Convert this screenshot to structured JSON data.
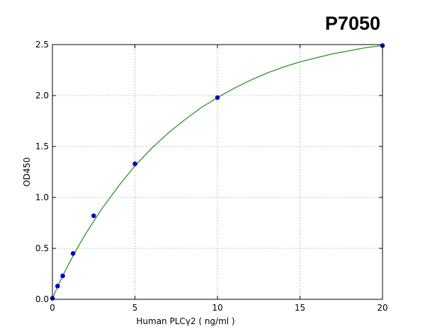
{
  "chart_data": {
    "type": "scatter",
    "title": "P7050",
    "xlabel": "Human PLCγ2 ( ng/ml )",
    "ylabel": "OD450",
    "xlim": [
      0,
      20
    ],
    "ylim": [
      0,
      2.5
    ],
    "xticks": [
      "0",
      "5",
      "10",
      "15",
      "20"
    ],
    "yticks": [
      "0.0",
      "0.5",
      "1.0",
      "1.5",
      "2.0",
      "2.5"
    ],
    "grid": true,
    "series": [
      {
        "kind": "points",
        "color": "#0000cc",
        "x": [
          0,
          0.3125,
          0.625,
          1.25,
          2.5,
          5,
          10,
          20
        ],
        "y": [
          0.01,
          0.13,
          0.23,
          0.45,
          0.82,
          1.33,
          1.98,
          2.49
        ]
      },
      {
        "kind": "fit-curve",
        "color": "#3a9a3a",
        "x": [
          0,
          0.5,
          1,
          1.5,
          2,
          3,
          4,
          5,
          6,
          7,
          8,
          9,
          10,
          11,
          12,
          13,
          14,
          15,
          16,
          17,
          18,
          19,
          20
        ],
        "y": [
          0.01,
          0.19,
          0.35,
          0.5,
          0.64,
          0.89,
          1.11,
          1.31,
          1.48,
          1.63,
          1.76,
          1.88,
          1.98,
          2.07,
          2.15,
          2.22,
          2.28,
          2.33,
          2.37,
          2.41,
          2.44,
          2.47,
          2.49
        ]
      }
    ]
  }
}
